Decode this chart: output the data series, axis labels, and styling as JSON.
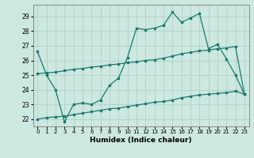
{
  "title": "",
  "xlabel": "Humidex (Indice chaleur)",
  "ylabel": "",
  "bg_color": "#cce8e0",
  "line_color": "#1a7a6e",
  "grid_color": "#aaccc4",
  "ylim": [
    21.5,
    29.8
  ],
  "xlim": [
    -0.5,
    23.5
  ],
  "yticks": [
    22,
    23,
    24,
    25,
    26,
    27,
    28,
    29
  ],
  "xticks": [
    0,
    1,
    2,
    3,
    4,
    5,
    6,
    7,
    8,
    9,
    10,
    11,
    12,
    13,
    14,
    15,
    16,
    17,
    18,
    19,
    20,
    21,
    22,
    23
  ],
  "line1_x": [
    0,
    1,
    2,
    3,
    4,
    5,
    6,
    7,
    8,
    9,
    10,
    11,
    12,
    13,
    14,
    15,
    16,
    17,
    18,
    19,
    20,
    21,
    22,
    23
  ],
  "line1_y": [
    26.6,
    25.0,
    24.0,
    21.8,
    23.0,
    23.1,
    23.0,
    23.3,
    24.3,
    24.8,
    26.2,
    28.2,
    28.1,
    28.2,
    28.4,
    29.3,
    28.6,
    28.9,
    29.2,
    26.8,
    27.1,
    26.1,
    25.0,
    23.7
  ],
  "line2_x": [
    0,
    1,
    2,
    3,
    4,
    5,
    6,
    7,
    8,
    9,
    10,
    11,
    12,
    13,
    14,
    15,
    16,
    17,
    18,
    19,
    20,
    21,
    22,
    23
  ],
  "line2_y": [
    25.1,
    25.15,
    25.2,
    25.3,
    25.4,
    25.45,
    25.55,
    25.6,
    25.7,
    25.75,
    25.85,
    25.9,
    26.0,
    26.05,
    26.15,
    26.3,
    26.45,
    26.55,
    26.65,
    26.7,
    26.8,
    26.85,
    26.95,
    23.7
  ],
  "line3_x": [
    0,
    1,
    2,
    3,
    4,
    5,
    6,
    7,
    8,
    9,
    10,
    11,
    12,
    13,
    14,
    15,
    16,
    17,
    18,
    19,
    20,
    21,
    22,
    23
  ],
  "line3_y": [
    22.0,
    22.1,
    22.15,
    22.2,
    22.3,
    22.4,
    22.5,
    22.6,
    22.7,
    22.75,
    22.85,
    22.95,
    23.05,
    23.15,
    23.2,
    23.3,
    23.45,
    23.55,
    23.65,
    23.7,
    23.75,
    23.8,
    23.9,
    23.7
  ]
}
